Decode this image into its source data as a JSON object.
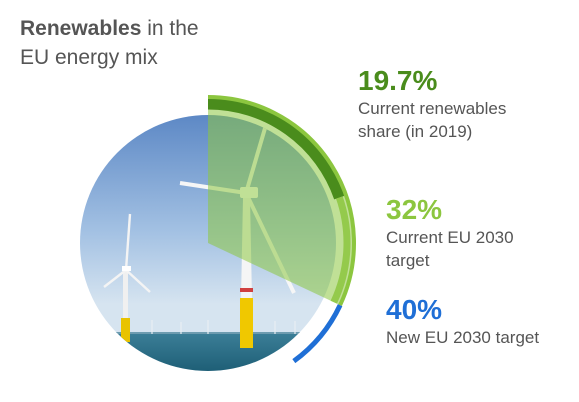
{
  "title": {
    "bold": "Renewables",
    "rest_line1": " in the",
    "line2": "EU energy mix"
  },
  "colors": {
    "current": "#4a8c1c",
    "target_2030": "#8cc63f",
    "new_target": "#1f6fd6",
    "text": "#555555"
  },
  "chart_data": {
    "type": "pie",
    "title": "Renewables in the EU energy mix",
    "series": [
      {
        "name": "Current renewables share (in 2019)",
        "value": 19.7,
        "label": "19.7%"
      },
      {
        "name": "Current EU 2030 target",
        "value": 32,
        "label": "32%"
      },
      {
        "name": "New EU 2030 target",
        "value": 40,
        "label": "40%"
      }
    ]
  },
  "labels": [
    {
      "pct": "19.7%",
      "line1": "Current renewables",
      "line2": "share (in 2019)"
    },
    {
      "pct": "32%",
      "line1": "Current EU 2030",
      "line2": "target"
    },
    {
      "pct": "40%",
      "line1": "New EU 2030 target",
      "line2": ""
    }
  ]
}
